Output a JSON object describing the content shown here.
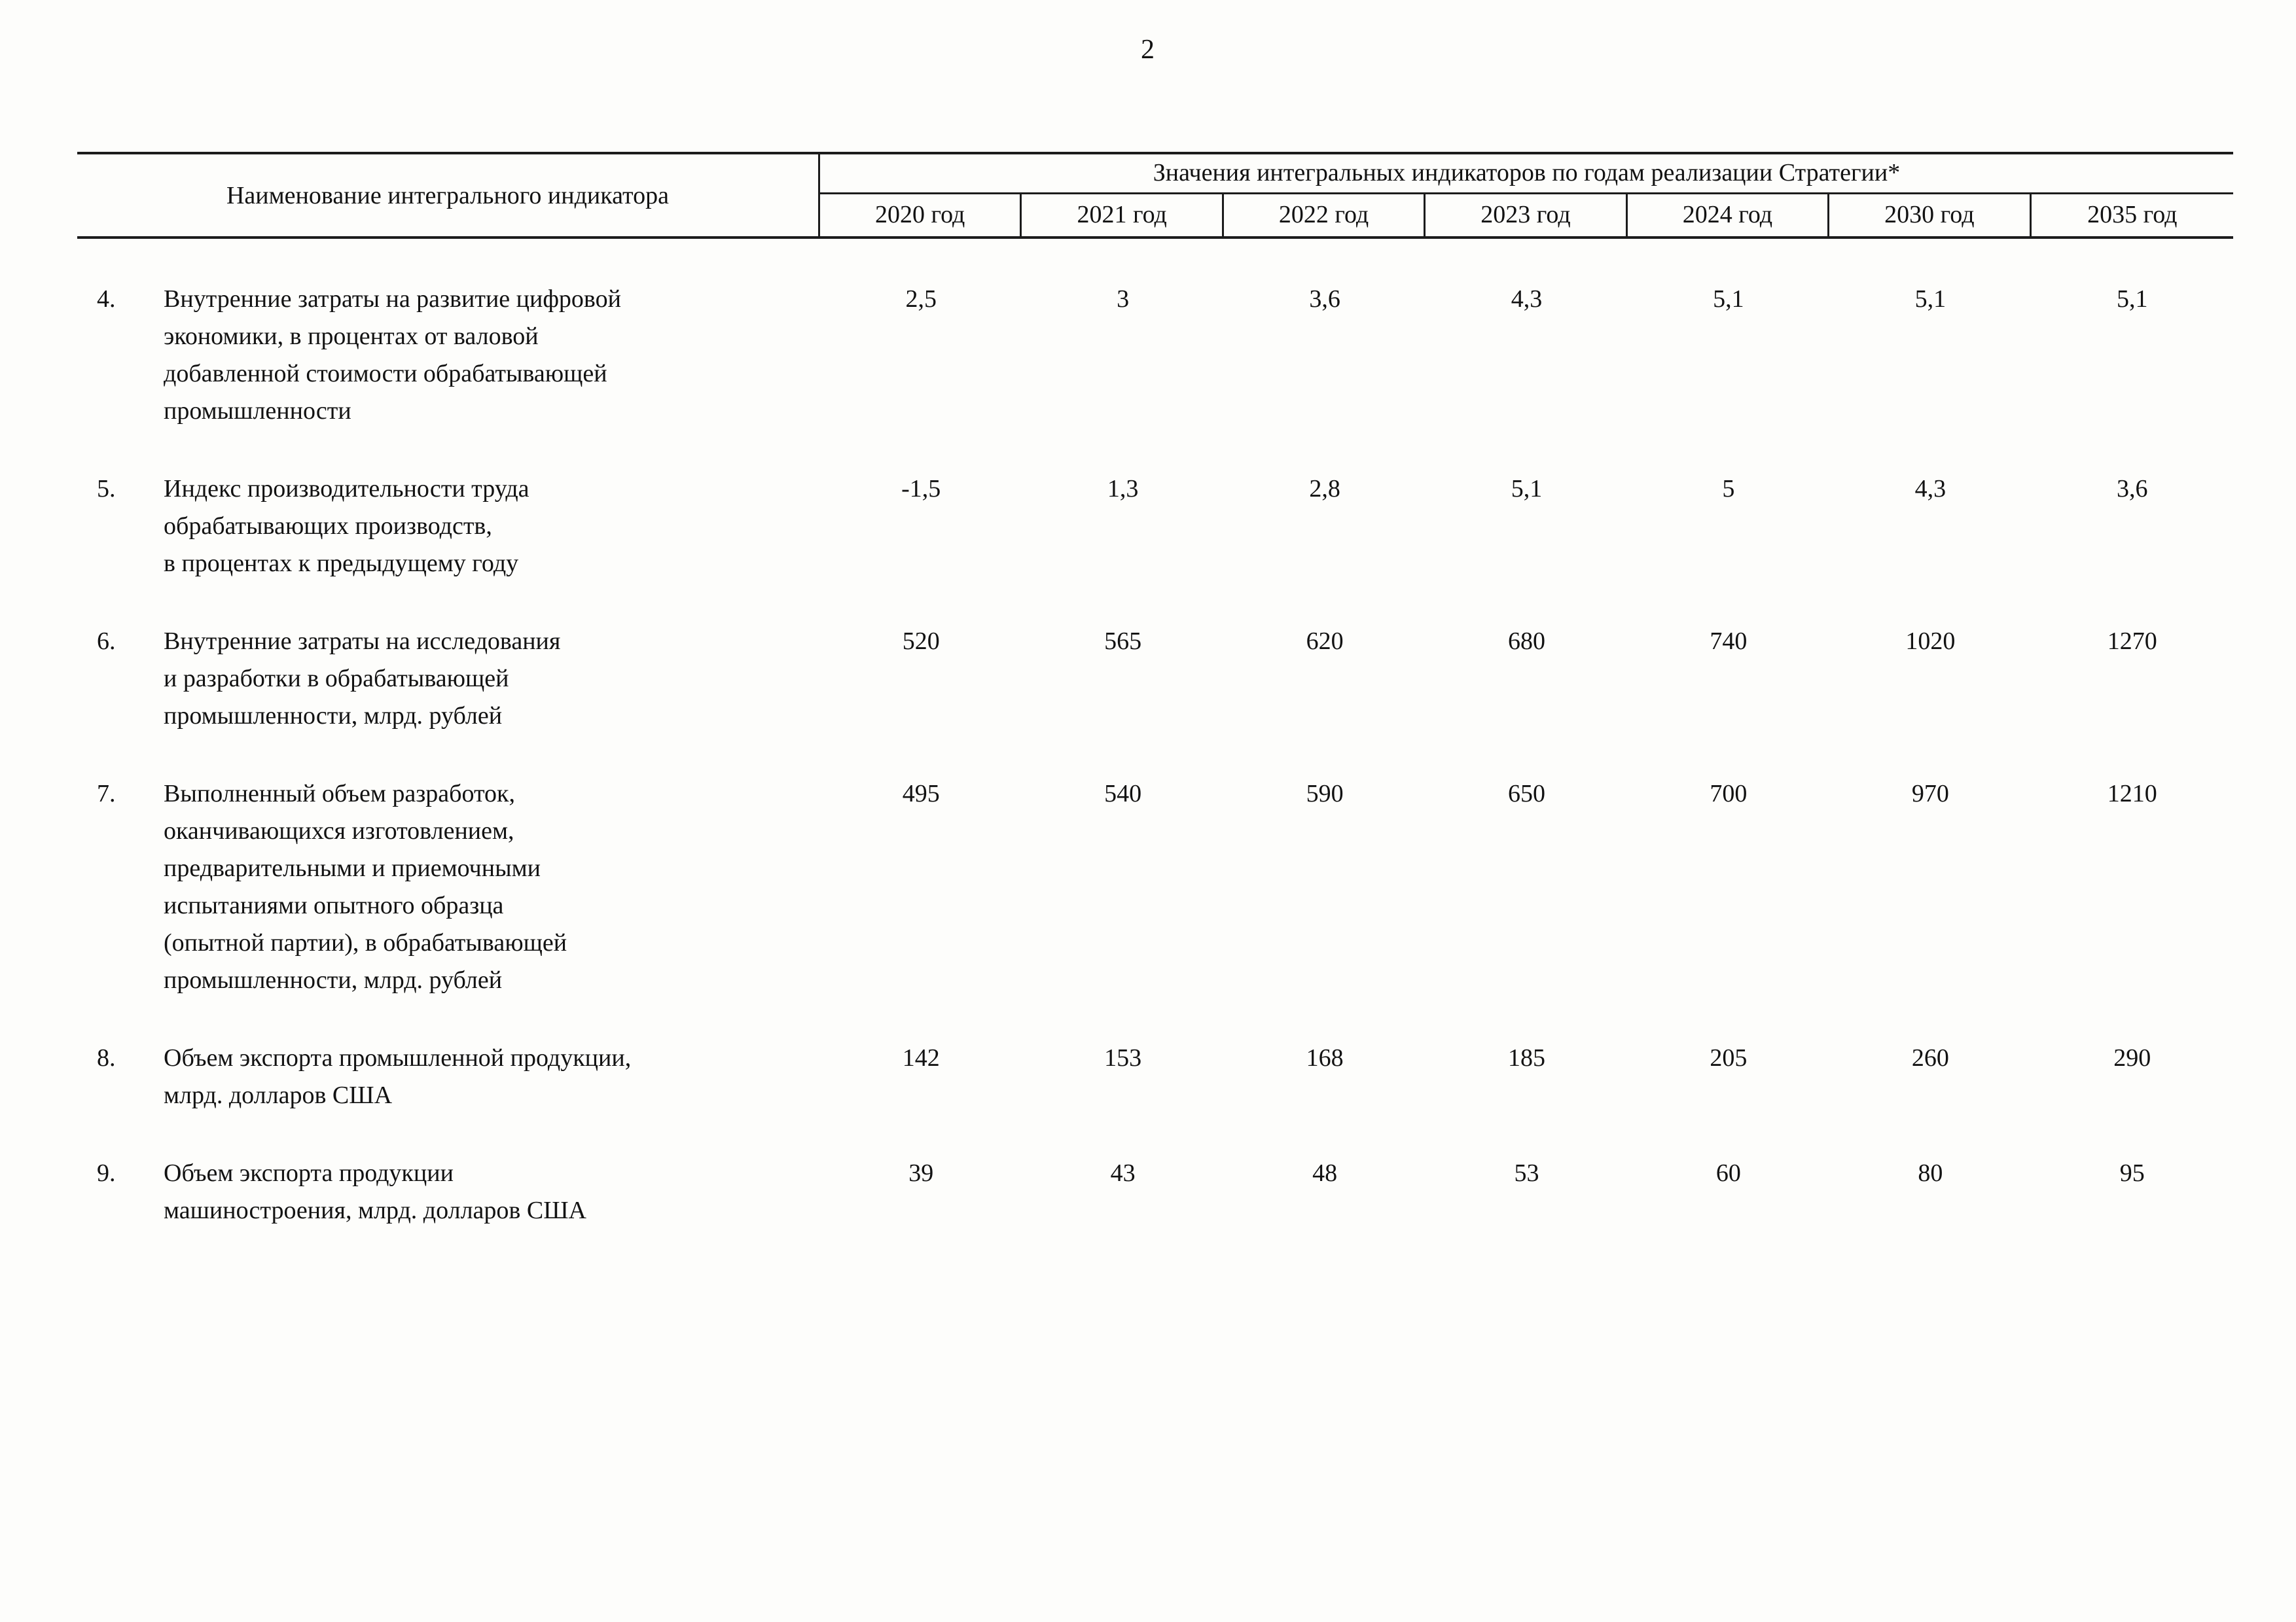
{
  "page": {
    "number": "2"
  },
  "table": {
    "name_header": "Наименование интегрального индикатора",
    "values_header": "Значения интегральных индикаторов по годам реализации Стратегии*",
    "year_headers": [
      "2020 год",
      "2021 год",
      "2022 год",
      "2023 год",
      "2024 год",
      "2030 год",
      "2035 год"
    ],
    "rows": [
      {
        "num": "4.",
        "name": "Внутренние затраты на развитие цифровой\nэкономики, в процентах от валовой\nдобавленной стоимости обрабатывающей\nпромышленности",
        "values": [
          "2,5",
          "3",
          "3,6",
          "4,3",
          "5,1",
          "5,1",
          "5,1"
        ]
      },
      {
        "num": "5.",
        "name": "Индекс производительности труда\nобрабатывающих производств,\nв процентах к предыдущему году",
        "values": [
          "-1,5",
          "1,3",
          "2,8",
          "5,1",
          "5",
          "4,3",
          "3,6"
        ]
      },
      {
        "num": "6.",
        "name": "Внутренние затраты на исследования\nи разработки в обрабатывающей\nпромышленности, млрд. рублей",
        "values": [
          "520",
          "565",
          "620",
          "680",
          "740",
          "1020",
          "1270"
        ]
      },
      {
        "num": "7.",
        "name": "Выполненный объем разработок,\nоканчивающихся изготовлением,\nпредварительными и приемочными\nиспытаниями опытного образца\n(опытной партии), в обрабатывающей\nпромышленности, млрд. рублей",
        "values": [
          "495",
          "540",
          "590",
          "650",
          "700",
          "970",
          "1210"
        ]
      },
      {
        "num": "8.",
        "name": "Объем экспорта промышленной продукции,\nмлрд. долларов США",
        "values": [
          "142",
          "153",
          "168",
          "185",
          "205",
          "260",
          "290"
        ]
      },
      {
        "num": "9.",
        "name": "Объем экспорта продукции\nмашиностроения, млрд. долларов США",
        "values": [
          "39",
          "43",
          "48",
          "53",
          "60",
          "80",
          "95"
        ]
      }
    ]
  }
}
